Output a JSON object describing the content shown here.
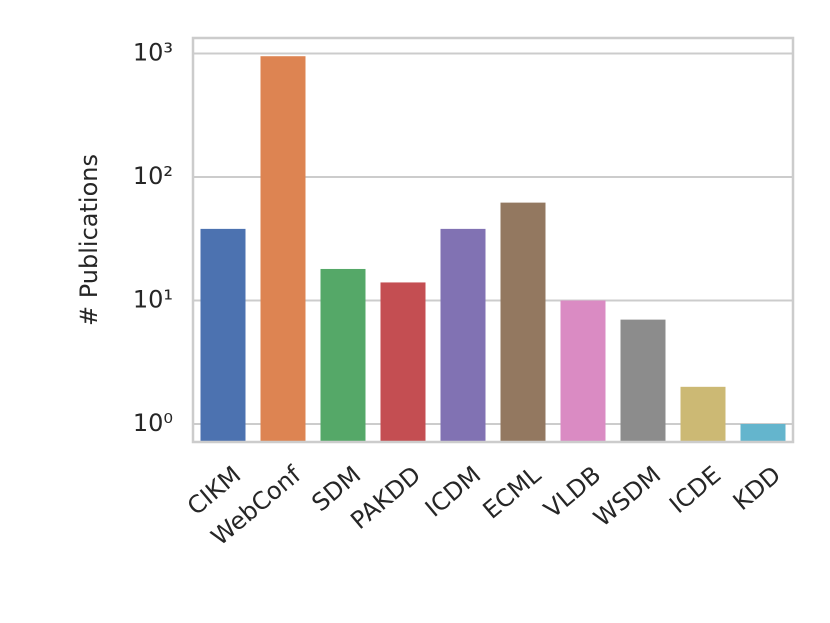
{
  "chart_data": {
    "type": "bar",
    "y_label": "# Publications",
    "categories": [
      "CIKM",
      "WebConf",
      "SDM",
      "PAKDD",
      "ICDM",
      "ECML",
      "VLDB",
      "WSDM",
      "ICDE",
      "KDD"
    ],
    "values": [
      38,
      950,
      18,
      14,
      38,
      62,
      10,
      7,
      2,
      1
    ],
    "colors": [
      "#4c72b0",
      "#dd8452",
      "#55a868",
      "#c44e52",
      "#8172b3",
      "#937860",
      "#da8bc3",
      "#8c8c8c",
      "#ccb974",
      "#64b5cd"
    ],
    "log_scale": true,
    "ylim": [
      0.715,
      1334
    ],
    "yticks": [
      {
        "value": 1,
        "label": "10⁰"
      },
      {
        "value": 10,
        "label": "10¹"
      },
      {
        "value": 100,
        "label": "10²"
      },
      {
        "value": 1000,
        "label": "10³"
      }
    ],
    "grid": true
  }
}
